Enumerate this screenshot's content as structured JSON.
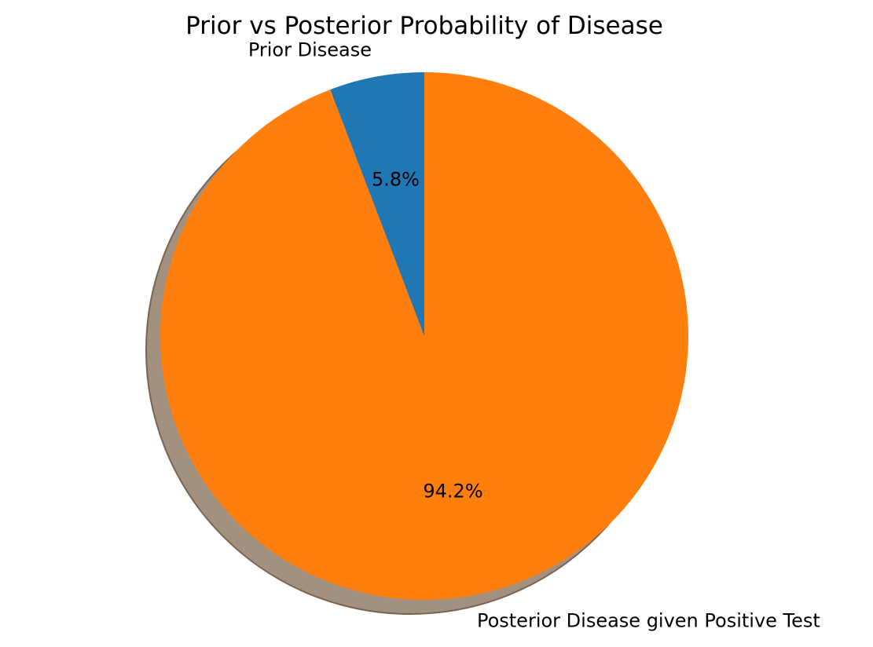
{
  "chart_data": {
    "type": "pie",
    "title": "Prior vs Posterior Probability of Disease",
    "slices": [
      {
        "label": "Prior Disease",
        "percent": 5.8,
        "percent_label": "5.8%",
        "color": "#1f77b4"
      },
      {
        "label": "Posterior Disease given Positive Test",
        "percent": 94.2,
        "percent_label": "94.2%",
        "color": "#ff7f0e"
      }
    ],
    "start_angle_deg": 90,
    "direction": "counterclockwise",
    "shadow": true,
    "shadow_color": "#a39180"
  }
}
